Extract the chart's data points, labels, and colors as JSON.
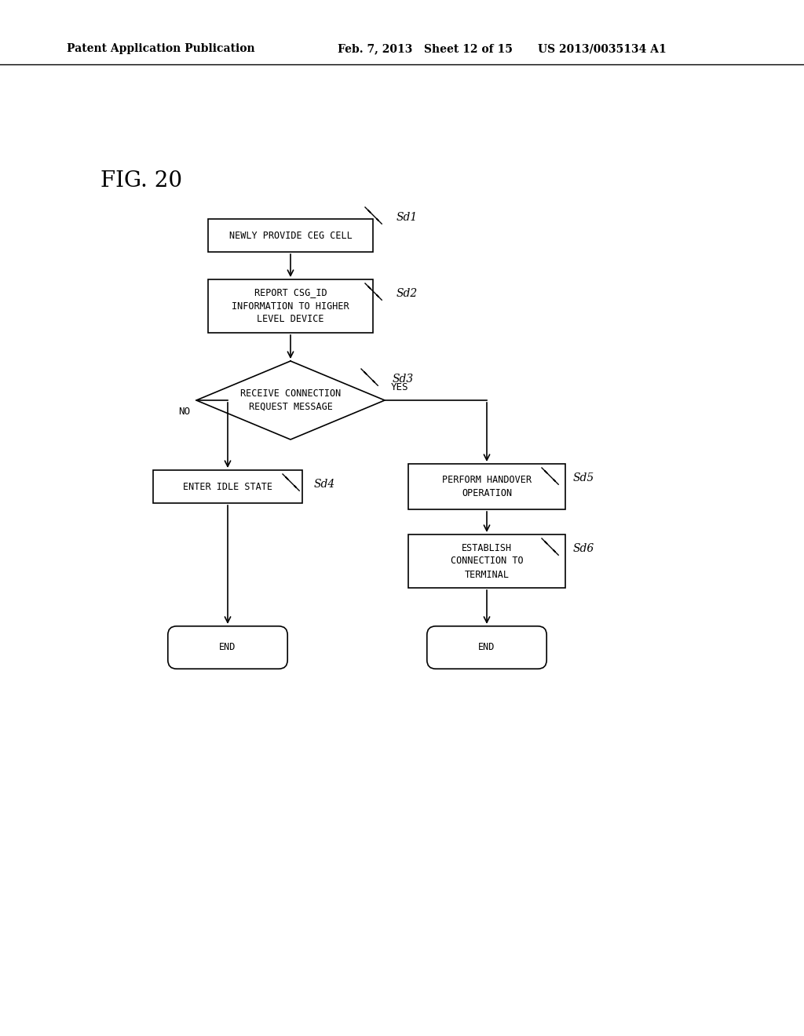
{
  "bg_color": "#ffffff",
  "text_color": "#000000",
  "header_left": "Patent Application Publication",
  "header_mid": "Feb. 7, 2013   Sheet 12 of 15",
  "header_right": "US 2013/0035134 A1",
  "fig_label": "FIG. 20",
  "sd1_label": "Sd1",
  "sd2_label": "Sd2",
  "sd3_label": "Sd3",
  "sd4_label": "Sd4",
  "sd5_label": "Sd5",
  "sd6_label": "Sd6",
  "box1_text": "NEWLY PROVIDE CEG CELL",
  "box2_text": "REPORT CSG_ID\nINFORMATION TO HIGHER\nLEVEL DEVICE",
  "diamond_text": "RECEIVE CONNECTION\nREQUEST MESSAGE",
  "box4_text": "ENTER IDLE STATE",
  "box5_text": "PERFORM HANDOVER\nOPERATION",
  "box6_text": "ESTABLISH\nCONNECTION TO\nTERMINAL",
  "end_text": "END",
  "yes_text": "YES",
  "no_text": "NO"
}
